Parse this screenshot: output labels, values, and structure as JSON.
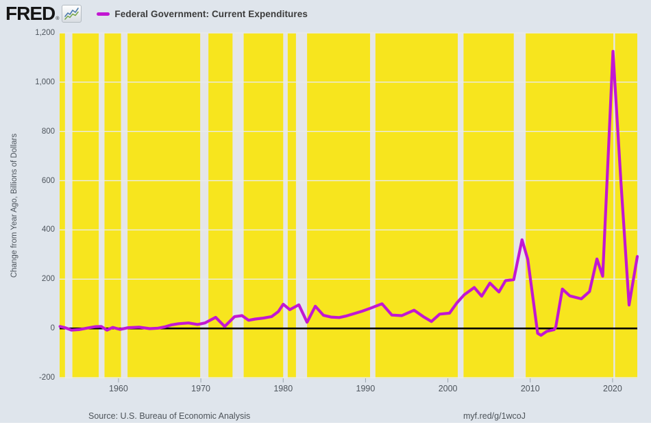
{
  "header": {
    "logo_text": "FRED",
    "registered_mark": "®",
    "legend": {
      "label": "Federal Government: Current Expenditures"
    }
  },
  "footer": {
    "source": "Source: U.S. Bureau of Economic Analysis",
    "link": "myf.red/g/1wcoJ"
  },
  "colors": {
    "page_bg": "#dfe5ec",
    "plot_bg": "#f7e51e",
    "recession_band": "#e5e6e8",
    "grid_line": "#e9ebec",
    "zero_line": "#000000",
    "series_line": "#c217d2",
    "tick_mark": "#9aa5ae",
    "text": "#4d545c"
  },
  "chart_data": {
    "type": "line",
    "title": "Federal Government: Current Expenditures",
    "ylabel": "Change from Year Ago, Billions of Dollars",
    "xlabel": "",
    "ylim": [
      -200,
      1200
    ],
    "x_range": [
      1952.85,
      2023
    ],
    "grid": true,
    "legend_position": "top-left",
    "y_ticks": [
      {
        "value": -200,
        "label": "-200"
      },
      {
        "value": 0,
        "label": "0"
      },
      {
        "value": 200,
        "label": "200"
      },
      {
        "value": 400,
        "label": "400"
      },
      {
        "value": 600,
        "label": "600"
      },
      {
        "value": 800,
        "label": "800"
      },
      {
        "value": 1000,
        "label": "1,000"
      },
      {
        "value": 1200,
        "label": "1,200"
      }
    ],
    "x_ticks": [
      {
        "value": 1960,
        "label": "1960"
      },
      {
        "value": 1970,
        "label": "1970"
      },
      {
        "value": 1980,
        "label": "1980"
      },
      {
        "value": 1990,
        "label": "1990"
      },
      {
        "value": 2000,
        "label": "2000"
      },
      {
        "value": 2010,
        "label": "2010"
      },
      {
        "value": 2020,
        "label": "2020"
      }
    ],
    "zero_line": 0,
    "recessions": [
      [
        1953.5,
        1954.4
      ],
      [
        1957.6,
        1958.3
      ],
      [
        1960.3,
        1961.1
      ],
      [
        1969.92,
        1970.92
      ],
      [
        1973.85,
        1975.2
      ],
      [
        1980.0,
        1980.55
      ],
      [
        1981.55,
        1982.9
      ],
      [
        1990.55,
        1991.2
      ],
      [
        2001.2,
        2001.9
      ],
      [
        2008.0,
        2009.45
      ],
      [
        2020.1,
        2020.3
      ]
    ],
    "series": [
      {
        "name": "Federal Government: Current Expenditures",
        "units": "Change from Year Ago, Billions of Dollars",
        "points": [
          [
            1952.9,
            8
          ],
          [
            1953.6,
            2
          ],
          [
            1954.3,
            -7
          ],
          [
            1955.2,
            -5
          ],
          [
            1956.3,
            2
          ],
          [
            1957.2,
            7
          ],
          [
            1957.9,
            8
          ],
          [
            1958.6,
            -7
          ],
          [
            1959.3,
            4
          ],
          [
            1960.2,
            -4
          ],
          [
            1961.2,
            3
          ],
          [
            1962.5,
            5
          ],
          [
            1963.8,
            -1
          ],
          [
            1964.8,
            1
          ],
          [
            1965.6,
            6
          ],
          [
            1966.4,
            14
          ],
          [
            1967.3,
            19
          ],
          [
            1968.5,
            22
          ],
          [
            1969.6,
            16
          ],
          [
            1970.5,
            22
          ],
          [
            1971.8,
            45
          ],
          [
            1972.9,
            8
          ],
          [
            1974.1,
            48
          ],
          [
            1975.0,
            52
          ],
          [
            1975.8,
            33
          ],
          [
            1976.6,
            38
          ],
          [
            1977.6,
            42
          ],
          [
            1978.6,
            48
          ],
          [
            1979.4,
            68
          ],
          [
            1980.0,
            98
          ],
          [
            1980.8,
            76
          ],
          [
            1981.9,
            96
          ],
          [
            1982.9,
            25
          ],
          [
            1983.9,
            90
          ],
          [
            1984.9,
            53
          ],
          [
            1985.8,
            46
          ],
          [
            1986.8,
            44
          ],
          [
            1987.6,
            50
          ],
          [
            1988.6,
            60
          ],
          [
            1989.6,
            70
          ],
          [
            1990.6,
            82
          ],
          [
            1992.0,
            100
          ],
          [
            1993.2,
            54
          ],
          [
            1994.4,
            52
          ],
          [
            1995.9,
            74
          ],
          [
            1997.0,
            48
          ],
          [
            1998.0,
            28
          ],
          [
            1999.0,
            58
          ],
          [
            2000.2,
            62
          ],
          [
            2001.1,
            104
          ],
          [
            2002.0,
            137
          ],
          [
            2003.2,
            166
          ],
          [
            2004.1,
            131
          ],
          [
            2005.1,
            184
          ],
          [
            2006.2,
            148
          ],
          [
            2007.0,
            194
          ],
          [
            2008.0,
            198
          ],
          [
            2009.0,
            360
          ],
          [
            2009.7,
            280
          ],
          [
            2010.9,
            -20
          ],
          [
            2011.3,
            -28
          ],
          [
            2012.0,
            -12
          ],
          [
            2012.9,
            -5
          ],
          [
            2013.1,
            5
          ],
          [
            2013.9,
            160
          ],
          [
            2014.8,
            132
          ],
          [
            2016.2,
            120
          ],
          [
            2017.2,
            150
          ],
          [
            2018.1,
            282
          ],
          [
            2018.8,
            212
          ],
          [
            2020.05,
            1125
          ],
          [
            2021.0,
            600
          ],
          [
            2022.0,
            95
          ],
          [
            2023.0,
            292
          ]
        ]
      }
    ]
  }
}
